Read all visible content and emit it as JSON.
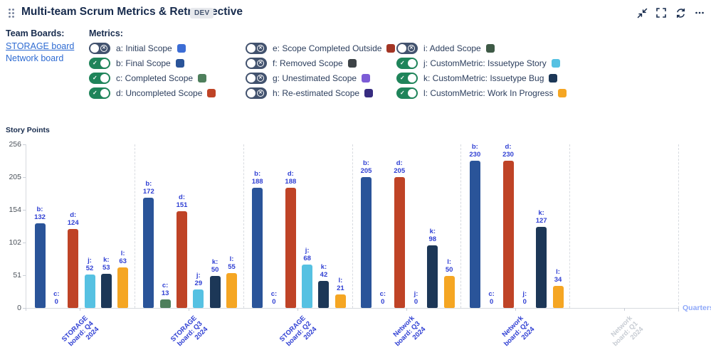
{
  "header": {
    "title": "Multi-team Scrum Metrics & Retrospective",
    "badge": "DEV",
    "icons": [
      "drag-grip-icon",
      "collapse-icon",
      "fullscreen-icon",
      "refresh-icon",
      "more-icon"
    ]
  },
  "team_boards": {
    "label": "Team Boards:",
    "boards": [
      {
        "name": "STORAGE board"
      },
      {
        "name": "Network board"
      }
    ]
  },
  "metrics_panel": {
    "label": "Metrics:",
    "toggle_on_color": "#1f845a",
    "toggle_off_color": "#42526e",
    "metrics": [
      {
        "key": "a",
        "label": "a: Initial Scope",
        "color": "#3c6dd5",
        "enabled": false,
        "column": 0
      },
      {
        "key": "b",
        "label": "b: Final Scope",
        "color": "#2a5499",
        "enabled": true,
        "column": 0
      },
      {
        "key": "c",
        "label": "c: Completed Scope",
        "color": "#4e7f5c",
        "enabled": true,
        "column": 0
      },
      {
        "key": "d",
        "label": "d: Uncompleted Scope",
        "color": "#bf4326",
        "enabled": true,
        "column": 0
      },
      {
        "key": "e",
        "label": "e: Scope Completed Outside",
        "color": "#a33524",
        "enabled": false,
        "column": 1
      },
      {
        "key": "f",
        "label": "f: Removed Scope",
        "color": "#3d4347",
        "enabled": false,
        "column": 1
      },
      {
        "key": "g",
        "label": "g: Unestimated Scope",
        "color": "#7c5cd6",
        "enabled": false,
        "column": 1
      },
      {
        "key": "h",
        "label": "h: Re-estimated Scope",
        "color": "#372c80",
        "enabled": false,
        "column": 1
      },
      {
        "key": "i",
        "label": "i: Added Scope",
        "color": "#3e5a46",
        "enabled": false,
        "column": 2
      },
      {
        "key": "j",
        "label": "j: CustomMetric: Issuetype Story",
        "color": "#56c1e2",
        "enabled": true,
        "column": 2
      },
      {
        "key": "k",
        "label": "k: CustomMetric: Issuetype Bug",
        "color": "#1c3757",
        "enabled": true,
        "column": 2
      },
      {
        "key": "l",
        "label": "l: CustomMetric: Work In Progress",
        "color": "#f5a623",
        "enabled": true,
        "column": 2
      }
    ]
  },
  "chart_data": {
    "type": "bar",
    "title": "",
    "ylabel": "Story Points",
    "xlabel": "Quarters",
    "ylim": [
      0,
      256
    ],
    "yticks": [
      0,
      51,
      102,
      154,
      205,
      256
    ],
    "grid": "vertical-dashed-separators",
    "legend_position": "top-toggles",
    "value_label_color": "#2f3fd3",
    "categories": [
      "STORAGE board: Q4 2024",
      "STORAGE board: Q3 2024",
      "STORAGE board: Q2 2024",
      "Network board: Q3 2024",
      "Network board: Q2 2024",
      "Network board: Q1 2024"
    ],
    "groups": [
      {
        "label_lines": [
          "STORAGE",
          "board: Q4",
          "2024"
        ],
        "faded": false,
        "bars": [
          {
            "metric": "b",
            "value": 132
          },
          {
            "metric": "c",
            "value": 0
          },
          {
            "metric": "d",
            "value": 124
          },
          {
            "metric": "j",
            "value": 52
          },
          {
            "metric": "k",
            "value": 53
          },
          {
            "metric": "l",
            "value": 63
          }
        ]
      },
      {
        "label_lines": [
          "STORAGE",
          "board: Q3",
          "2024"
        ],
        "faded": false,
        "bars": [
          {
            "metric": "b",
            "value": 172
          },
          {
            "metric": "c",
            "value": 13
          },
          {
            "metric": "d",
            "value": 151
          },
          {
            "metric": "j",
            "value": 29
          },
          {
            "metric": "k",
            "value": 50
          },
          {
            "metric": "l",
            "value": 55
          }
        ]
      },
      {
        "label_lines": [
          "STORAGE",
          "board: Q2",
          "2024"
        ],
        "faded": false,
        "bars": [
          {
            "metric": "b",
            "value": 188
          },
          {
            "metric": "c",
            "value": 0
          },
          {
            "metric": "d",
            "value": 188
          },
          {
            "metric": "j",
            "value": 68
          },
          {
            "metric": "k",
            "value": 42
          },
          {
            "metric": "l",
            "value": 21
          }
        ]
      },
      {
        "label_lines": [
          "Network",
          "board: Q3",
          "2024"
        ],
        "faded": false,
        "bars": [
          {
            "metric": "b",
            "value": 205
          },
          {
            "metric": "c",
            "value": 0
          },
          {
            "metric": "d",
            "value": 205
          },
          {
            "metric": "j",
            "value": 0
          },
          {
            "metric": "k",
            "value": 98
          },
          {
            "metric": "l",
            "value": 50
          }
        ]
      },
      {
        "label_lines": [
          "Network",
          "board: Q2",
          "2024"
        ],
        "faded": false,
        "bars": [
          {
            "metric": "b",
            "value": 230
          },
          {
            "metric": "c",
            "value": 0
          },
          {
            "metric": "d",
            "value": 230
          },
          {
            "metric": "j",
            "value": 0
          },
          {
            "metric": "k",
            "value": 127
          },
          {
            "metric": "l",
            "value": 34
          }
        ]
      },
      {
        "label_lines": [
          "Network",
          "board: Q1",
          "2024"
        ],
        "faded": true,
        "bars": []
      }
    ]
  }
}
